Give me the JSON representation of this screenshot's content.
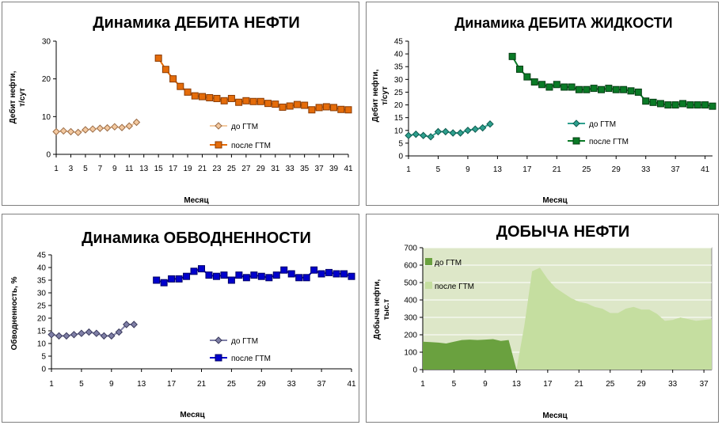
{
  "chart_data": [
    {
      "type": "line",
      "title": "Динамика ДЕБИТА НЕФТИ",
      "ylabel_lines": [
        "Дебит нефти,",
        "т/сут"
      ],
      "xlabel": "Месяц",
      "ylim": [
        0,
        30
      ],
      "yticks": [
        "0",
        "10",
        "20",
        "30"
      ],
      "xticks": [
        "1",
        "3",
        "5",
        "7",
        "9",
        "11",
        "13",
        "15",
        "17",
        "19",
        "21",
        "23",
        "25",
        "27",
        "29",
        "31",
        "33",
        "35",
        "37",
        "39",
        "41"
      ],
      "xrange": [
        1,
        41
      ],
      "legend": [
        "до ГТМ",
        "после ГТМ"
      ],
      "series": [
        {
          "name": "до ГТМ",
          "color": "#f3c9a0",
          "stroke": "#9a6b45",
          "marker": "diamond",
          "x": [
            1,
            2,
            3,
            4,
            5,
            6,
            7,
            8,
            9,
            10,
            11,
            12
          ],
          "y": [
            6.0,
            6.2,
            6.0,
            5.8,
            6.5,
            6.7,
            6.9,
            7.0,
            7.3,
            7.1,
            7.5,
            8.5
          ]
        },
        {
          "name": "после ГТМ",
          "color": "#e46c0a",
          "stroke": "#8a3a00",
          "marker": "square",
          "x": [
            15,
            16,
            17,
            18,
            19,
            20,
            21,
            22,
            23,
            24,
            25,
            26,
            27,
            28,
            29,
            30,
            31,
            32,
            33,
            34,
            35,
            36,
            37,
            38,
            39,
            40,
            41
          ],
          "y": [
            25.5,
            22.5,
            20.0,
            18.0,
            16.5,
            15.5,
            15.3,
            15.0,
            14.8,
            14.2,
            14.8,
            13.8,
            14.2,
            14.0,
            14.0,
            13.5,
            13.3,
            12.5,
            12.8,
            13.2,
            13.0,
            11.8,
            12.4,
            12.6,
            12.4,
            11.9,
            11.8
          ]
        }
      ]
    },
    {
      "type": "line",
      "title": "Динамика ДЕБИТА ЖИДКОСТИ",
      "ylabel_lines": [
        "Дебит нефти,",
        "т/сут"
      ],
      "xlabel": "Месяц",
      "ylim": [
        0,
        45
      ],
      "yticks": [
        "0",
        "5",
        "10",
        "15",
        "20",
        "25",
        "30",
        "35",
        "40",
        "45"
      ],
      "xticks": [
        "1",
        "5",
        "9",
        "13",
        "17",
        "21",
        "25",
        "29",
        "33",
        "37",
        "41"
      ],
      "xrange": [
        1,
        42
      ],
      "legend": [
        "до ГТМ",
        "после ГТМ"
      ],
      "series": [
        {
          "name": "до ГТМ",
          "color": "#2ea08e",
          "stroke": "#0d5a4e",
          "marker": "diamond",
          "x": [
            1,
            2,
            3,
            4,
            5,
            6,
            7,
            8,
            9,
            10,
            11,
            12
          ],
          "y": [
            8.0,
            8.5,
            8.0,
            7.5,
            9.5,
            9.5,
            9.0,
            9.0,
            10.0,
            10.5,
            11.0,
            12.5
          ]
        },
        {
          "name": "после ГТМ",
          "color": "#0a7a26",
          "stroke": "#043d12",
          "marker": "square",
          "x": [
            15,
            16,
            17,
            18,
            19,
            20,
            21,
            22,
            23,
            24,
            25,
            26,
            27,
            28,
            29,
            30,
            31,
            32,
            33,
            34,
            35,
            36,
            37,
            38,
            39,
            40,
            41,
            42
          ],
          "y": [
            39,
            34,
            31,
            29,
            28,
            27,
            28,
            27,
            27,
            26,
            26,
            26.5,
            26,
            26.5,
            26,
            26,
            25.5,
            25,
            21.5,
            21,
            20.5,
            20,
            20,
            20.5,
            20,
            20,
            20,
            19.5
          ]
        }
      ]
    },
    {
      "type": "line",
      "title": "Динамика ОБВОДНЕННОСТИ",
      "ylabel_lines": [
        "Обводненность, %"
      ],
      "xlabel": "Месяц",
      "ylim": [
        0,
        45
      ],
      "yticks": [
        "0",
        "5",
        "10",
        "15",
        "20",
        "25",
        "30",
        "35",
        "40",
        "45"
      ],
      "xticks": [
        "1",
        "5",
        "9",
        "13",
        "17",
        "21",
        "25",
        "29",
        "33",
        "37",
        "41"
      ],
      "xrange": [
        1,
        41
      ],
      "legend": [
        "до ГТМ",
        "после ГТМ"
      ],
      "series": [
        {
          "name": "до ГТМ",
          "color": "#7f7fa6",
          "stroke": "#3a3a5c",
          "marker": "diamond",
          "x": [
            1,
            2,
            3,
            4,
            5,
            6,
            7,
            8,
            9,
            10,
            11,
            12
          ],
          "y": [
            13.5,
            13.0,
            13.0,
            13.5,
            14.0,
            14.5,
            14.0,
            13.0,
            13.0,
            14.5,
            17.5,
            17.5
          ]
        },
        {
          "name": "после ГТМ",
          "color": "#0000cc",
          "stroke": "#000066",
          "marker": "square",
          "x": [
            15,
            16,
            17,
            18,
            19,
            20,
            21,
            22,
            23,
            24,
            25,
            26,
            27,
            28,
            29,
            30,
            31,
            32,
            33,
            34,
            35,
            36,
            37,
            38,
            39,
            40,
            41
          ],
          "y": [
            35,
            34,
            35.5,
            35.5,
            36.5,
            38.5,
            39.5,
            37,
            36.5,
            37,
            35,
            37,
            36,
            37,
            36.5,
            36,
            37,
            39,
            37.5,
            36,
            36,
            39,
            37.5,
            38,
            37.5,
            37.5,
            36.5
          ]
        }
      ]
    },
    {
      "type": "area",
      "title": "ДОБЫЧА НЕФТИ",
      "ylabel_lines": [
        "Добыча нефти,",
        "тыс.т"
      ],
      "xlabel": "Месяц",
      "ylim": [
        0,
        700
      ],
      "yticks": [
        "0",
        "100",
        "200",
        "300",
        "400",
        "500",
        "600",
        "700"
      ],
      "xticks": [
        "1",
        "5",
        "9",
        "13",
        "17",
        "21",
        "25",
        "29",
        "33",
        "37"
      ],
      "xrange": [
        1,
        38
      ],
      "legend": [
        "до ГТМ",
        "после ГТМ"
      ],
      "series": [
        {
          "name": "до ГТМ",
          "color": "#6aa13f",
          "x": [
            1,
            2,
            3,
            4,
            5,
            6,
            7,
            8,
            9,
            10,
            11,
            12,
            13
          ],
          "y": [
            160,
            158,
            155,
            150,
            160,
            170,
            172,
            170,
            172,
            175,
            165,
            170,
            0
          ]
        },
        {
          "name": "после ГТМ",
          "color": "#c5dea0",
          "x": [
            13,
            14,
            15,
            16,
            17,
            18,
            19,
            20,
            21,
            22,
            23,
            24,
            25,
            26,
            27,
            28,
            29,
            30,
            31,
            32,
            33,
            34,
            35,
            36,
            37,
            38
          ],
          "y": [
            0,
            250,
            565,
            585,
            520,
            470,
            440,
            410,
            390,
            380,
            360,
            350,
            325,
            325,
            350,
            360,
            345,
            345,
            320,
            280,
            285,
            300,
            290,
            280,
            285,
            290
          ]
        }
      ]
    }
  ]
}
